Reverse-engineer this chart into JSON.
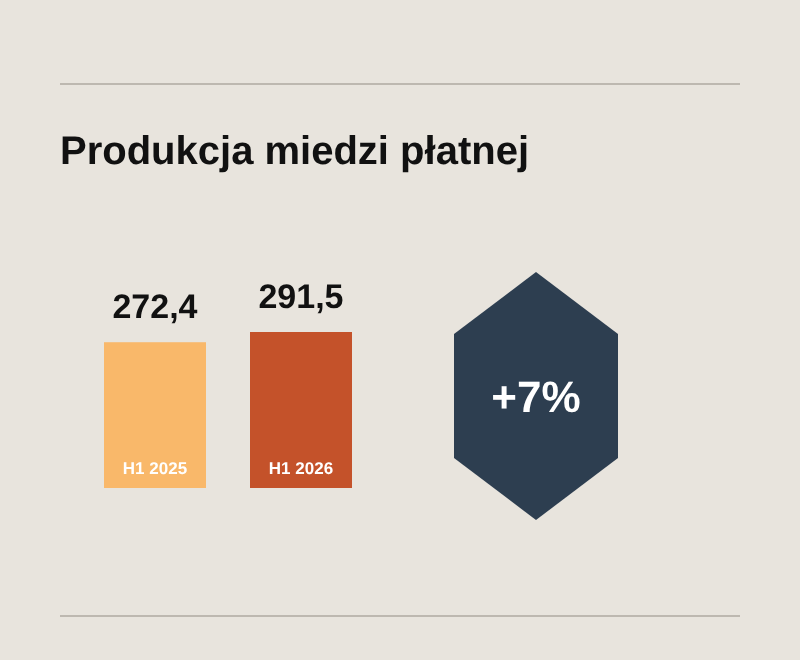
{
  "chart_data": {
    "type": "bar",
    "title": "Produkcja miedzi płatnej",
    "categories": [
      "H1 2025",
      "H1 2026"
    ],
    "values": [
      272.4,
      291.5
    ],
    "colors": [
      "#f9b86a",
      "#c4522a"
    ],
    "value_labels": [
      "272,4",
      "291,5"
    ],
    "annotations": [
      "+7%"
    ]
  }
}
